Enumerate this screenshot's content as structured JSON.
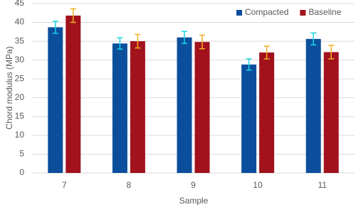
{
  "chart_data": {
    "type": "bar",
    "x_label": "Sample",
    "y_label": "Chord modulus (MPa)",
    "categories": [
      "7",
      "8",
      "9",
      "10",
      "11"
    ],
    "series": [
      {
        "name": "Compacted",
        "color": "#0b4f9c",
        "error_color": "#19d3e6",
        "values": [
          38.7,
          34.4,
          36.0,
          28.8,
          35.6
        ],
        "errors": [
          1.6,
          1.5,
          1.6,
          1.5,
          1.6
        ]
      },
      {
        "name": "Baseline",
        "color": "#a1121d",
        "error_color": "#f2b01e",
        "values": [
          41.8,
          35.0,
          34.8,
          32.0,
          32.1
        ],
        "errors": [
          1.8,
          1.8,
          1.8,
          1.7,
          1.8
        ]
      }
    ],
    "ylim": [
      0,
      45
    ],
    "yticks": [
      0,
      5,
      10,
      15,
      20,
      25,
      30,
      35,
      40,
      45
    ],
    "grid": true,
    "legend": "top-right"
  }
}
